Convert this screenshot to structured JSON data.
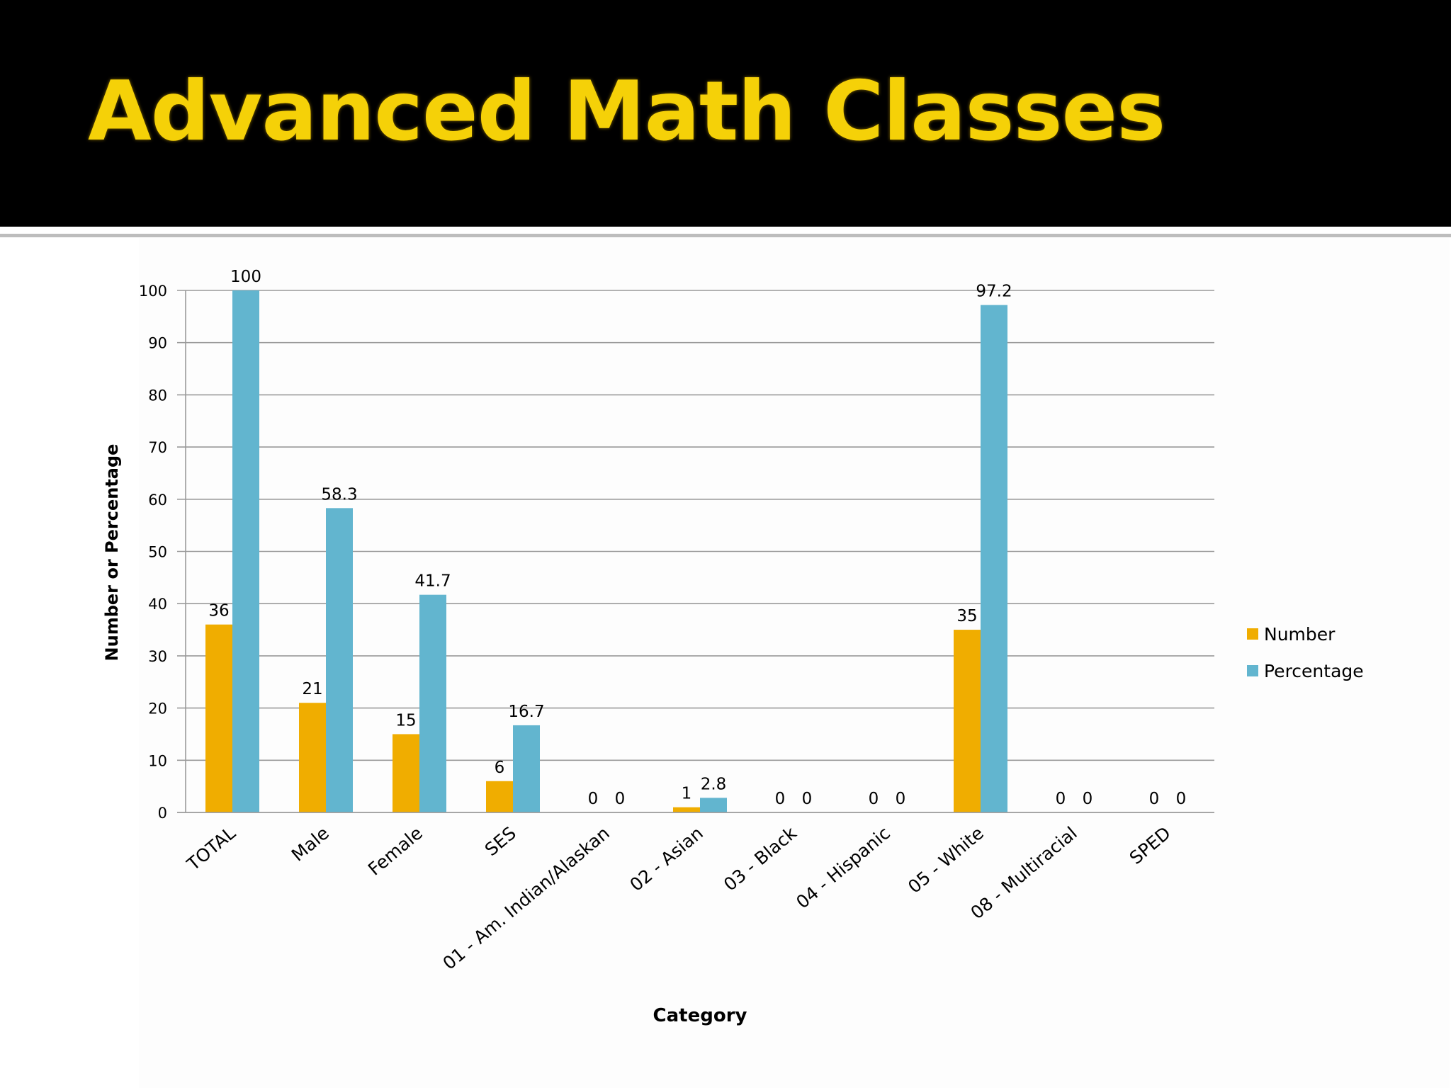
{
  "slide": {
    "title": "Advanced Math Classes"
  },
  "colors": {
    "title": "#f5d108",
    "number_series": "#f0ad00",
    "percentage_series": "#62b5cf",
    "gridline": "#9a9a9a"
  },
  "chart_data": {
    "type": "bar",
    "title": "",
    "xlabel": "Category",
    "ylabel": "Number or Percentage",
    "ylim": [
      0,
      100
    ],
    "yticks": [
      0,
      10,
      20,
      30,
      40,
      50,
      60,
      70,
      80,
      90,
      100
    ],
    "grid": true,
    "legend_position": "right",
    "categories": [
      "TOTAL",
      "Male",
      "Female",
      "SES",
      "01 - Am. Indian/Alaskan",
      "02 - Asian",
      "03 - Black",
      "04 - Hispanic",
      "05 - White",
      "08 - Multiracial",
      "SPED"
    ],
    "series": [
      {
        "name": "Number",
        "values": [
          36,
          21,
          15,
          6,
          0,
          1,
          0,
          0,
          35,
          0,
          0
        ],
        "labels": [
          "36",
          "21",
          "15",
          "6",
          "0",
          "1",
          "0",
          "0",
          "35",
          "0",
          "0"
        ]
      },
      {
        "name": "Percentage",
        "values": [
          100,
          58.3,
          41.7,
          16.7,
          0,
          2.8,
          0,
          0,
          97.2,
          0,
          0
        ],
        "labels": [
          "100",
          "58.3",
          "41.7",
          "16.7",
          "0",
          "2.8",
          "0",
          "0",
          "97.2",
          "0",
          "0"
        ]
      }
    ]
  }
}
